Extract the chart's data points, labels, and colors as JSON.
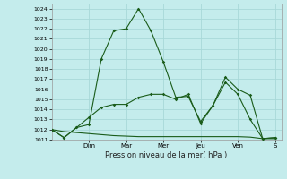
{
  "title": "Pression niveau de la mer( hPa )",
  "bg_color": "#c4ecec",
  "grid_color": "#a8d8d8",
  "line_color": "#1a5c1a",
  "ylim": [
    1011,
    1024.5
  ],
  "yticks": [
    1011,
    1012,
    1013,
    1014,
    1015,
    1016,
    1017,
    1018,
    1019,
    1020,
    1021,
    1022,
    1023,
    1024
  ],
  "day_labels": [
    "Dim",
    "Mar",
    "Mer",
    "Jeu",
    "Ven",
    "S"
  ],
  "day_positions": [
    3,
    6,
    9,
    12,
    15,
    18
  ],
  "series1_x": [
    0,
    1,
    2,
    3,
    4,
    5,
    6,
    7,
    8,
    9,
    10,
    11,
    12,
    13,
    14,
    15,
    16,
    17,
    18
  ],
  "series1_y": [
    1012.0,
    1011.2,
    1012.2,
    1012.5,
    1019.0,
    1021.8,
    1022.0,
    1024.0,
    1021.8,
    1018.7,
    1015.2,
    1015.3,
    1012.8,
    1014.4,
    1017.2,
    1016.0,
    1015.4,
    1011.1,
    1011.2
  ],
  "series2_x": [
    0,
    1,
    2,
    3,
    4,
    5,
    6,
    7,
    8,
    9,
    10,
    11,
    12,
    13,
    14,
    15,
    16,
    17,
    18
  ],
  "series2_y": [
    1012.0,
    1011.2,
    1012.2,
    1013.2,
    1014.2,
    1014.5,
    1014.5,
    1015.2,
    1015.5,
    1015.5,
    1015.0,
    1015.5,
    1012.6,
    1014.4,
    1016.7,
    1015.5,
    1013.0,
    1011.1,
    1011.2
  ],
  "series3_x": [
    0,
    1,
    2,
    3,
    4,
    5,
    6,
    7,
    8,
    9,
    10,
    11,
    12,
    13,
    14,
    15,
    16,
    17,
    18
  ],
  "series3_y": [
    1012.0,
    1011.8,
    1011.7,
    1011.6,
    1011.5,
    1011.4,
    1011.35,
    1011.3,
    1011.3,
    1011.3,
    1011.3,
    1011.3,
    1011.3,
    1011.3,
    1011.3,
    1011.3,
    1011.25,
    1011.1,
    1011.1
  ]
}
